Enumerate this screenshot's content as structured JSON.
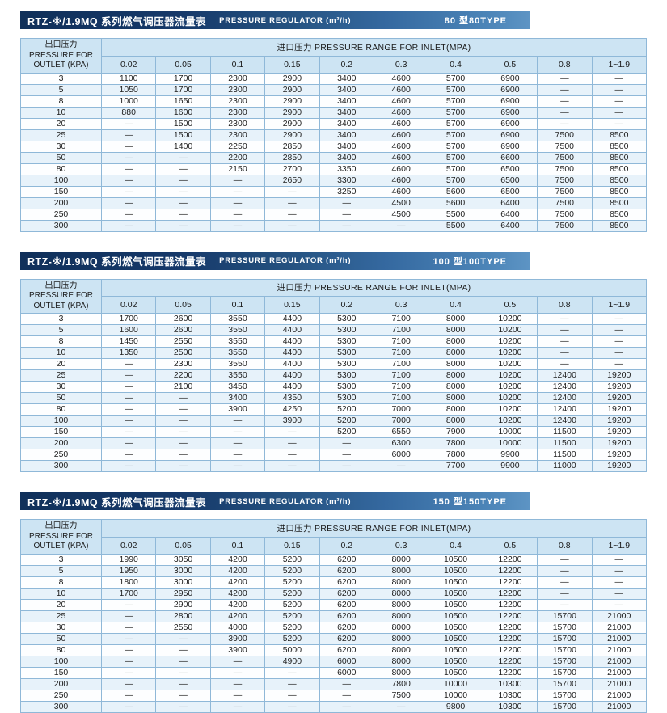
{
  "sections": [
    {
      "title_cn": "RTZ-※/1.9MQ 系列燃气调压器流量表",
      "title_en": "PRESSURE REGULATOR (m³/h)",
      "type_label": "80 型80TYPE",
      "table": {
        "outlet_header": "出口压力\nPRESSURE FOR\nOUTLET (KPA)",
        "inlet_header": "进口压力 PRESSURE RANGE FOR INLET(MPA)",
        "columns": [
          "0.02",
          "0.05",
          "0.1",
          "0.15",
          "0.2",
          "0.3",
          "0.4",
          "0.5",
          "0.8",
          "1~1.9"
        ],
        "rows": [
          {
            "outlet": "3",
            "values": [
              "1100",
              "1700",
              "2300",
              "2900",
              "3400",
              "4600",
              "5700",
              "6900",
              "—",
              "—"
            ]
          },
          {
            "outlet": "5",
            "values": [
              "1050",
              "1700",
              "2300",
              "2900",
              "3400",
              "4600",
              "5700",
              "6900",
              "—",
              "—"
            ]
          },
          {
            "outlet": "8",
            "values": [
              "1000",
              "1650",
              "2300",
              "2900",
              "3400",
              "4600",
              "5700",
              "6900",
              "—",
              "—"
            ]
          },
          {
            "outlet": "10",
            "values": [
              "880",
              "1600",
              "2300",
              "2900",
              "3400",
              "4600",
              "5700",
              "6900",
              "—",
              "—"
            ]
          },
          {
            "outlet": "20",
            "values": [
              "—",
              "1500",
              "2300",
              "2900",
              "3400",
              "4600",
              "5700",
              "6900",
              "—",
              "—"
            ]
          },
          {
            "outlet": "25",
            "values": [
              "—",
              "1500",
              "2300",
              "2900",
              "3400",
              "4600",
              "5700",
              "6900",
              "7500",
              "8500"
            ]
          },
          {
            "outlet": "30",
            "values": [
              "—",
              "1400",
              "2250",
              "2850",
              "3400",
              "4600",
              "5700",
              "6900",
              "7500",
              "8500"
            ]
          },
          {
            "outlet": "50",
            "values": [
              "—",
              "—",
              "2200",
              "2850",
              "3400",
              "4600",
              "5700",
              "6600",
              "7500",
              "8500"
            ]
          },
          {
            "outlet": "80",
            "values": [
              "—",
              "—",
              "2150",
              "2700",
              "3350",
              "4600",
              "5700",
              "6500",
              "7500",
              "8500"
            ]
          },
          {
            "outlet": "100",
            "values": [
              "—",
              "—",
              "—",
              "2650",
              "3300",
              "4600",
              "5700",
              "6500",
              "7500",
              "8500"
            ]
          },
          {
            "outlet": "150",
            "values": [
              "—",
              "—",
              "—",
              "—",
              "3250",
              "4600",
              "5600",
              "6500",
              "7500",
              "8500"
            ]
          },
          {
            "outlet": "200",
            "values": [
              "—",
              "—",
              "—",
              "—",
              "—",
              "4500",
              "5600",
              "6400",
              "7500",
              "8500"
            ]
          },
          {
            "outlet": "250",
            "values": [
              "—",
              "—",
              "—",
              "—",
              "—",
              "4500",
              "5500",
              "6400",
              "7500",
              "8500"
            ]
          },
          {
            "outlet": "300",
            "values": [
              "—",
              "—",
              "—",
              "—",
              "—",
              "—",
              "5500",
              "6400",
              "7500",
              "8500"
            ]
          }
        ]
      }
    },
    {
      "title_cn": "RTZ-※/1.9MQ 系列燃气调压器流量表",
      "title_en": "PRESSURE REGULATOR (m³/h)",
      "type_label": "100 型100TYPE",
      "table": {
        "outlet_header": "出口压力\nPRESSURE FOR\nOUTLET (KPA)",
        "inlet_header": "进口压力 PRESSURE RANGE FOR INLET(MPA)",
        "columns": [
          "0.02",
          "0.05",
          "0.1",
          "0.15",
          "0.2",
          "0.3",
          "0.4",
          "0.5",
          "0.8",
          "1~1.9"
        ],
        "rows": [
          {
            "outlet": "3",
            "values": [
              "1700",
              "2600",
              "3550",
              "4400",
              "5300",
              "7100",
              "8000",
              "10200",
              "—",
              "—"
            ]
          },
          {
            "outlet": "5",
            "values": [
              "1600",
              "2600",
              "3550",
              "4400",
              "5300",
              "7100",
              "8000",
              "10200",
              "—",
              "—"
            ]
          },
          {
            "outlet": "8",
            "values": [
              "1450",
              "2550",
              "3550",
              "4400",
              "5300",
              "7100",
              "8000",
              "10200",
              "—",
              "—"
            ]
          },
          {
            "outlet": "10",
            "values": [
              "1350",
              "2500",
              "3550",
              "4400",
              "5300",
              "7100",
              "8000",
              "10200",
              "—",
              "—"
            ]
          },
          {
            "outlet": "20",
            "values": [
              "—",
              "2300",
              "3550",
              "4400",
              "5300",
              "7100",
              "8000",
              "10200",
              "—",
              "—"
            ]
          },
          {
            "outlet": "25",
            "values": [
              "—",
              "2200",
              "3550",
              "4400",
              "5300",
              "7100",
              "8000",
              "10200",
              "12400",
              "19200"
            ]
          },
          {
            "outlet": "30",
            "values": [
              "—",
              "2100",
              "3450",
              "4400",
              "5300",
              "7100",
              "8000",
              "10200",
              "12400",
              "19200"
            ]
          },
          {
            "outlet": "50",
            "values": [
              "—",
              "—",
              "3400",
              "4350",
              "5300",
              "7100",
              "8000",
              "10200",
              "12400",
              "19200"
            ]
          },
          {
            "outlet": "80",
            "values": [
              "—",
              "—",
              "3900",
              "4250",
              "5200",
              "7000",
              "8000",
              "10200",
              "12400",
              "19200"
            ]
          },
          {
            "outlet": "100",
            "values": [
              "—",
              "—",
              "—",
              "3900",
              "5200",
              "7000",
              "8000",
              "10200",
              "12400",
              "19200"
            ]
          },
          {
            "outlet": "150",
            "values": [
              "—",
              "—",
              "—",
              "—",
              "5200",
              "6550",
              "7900",
              "10000",
              "11500",
              "19200"
            ]
          },
          {
            "outlet": "200",
            "values": [
              "—",
              "—",
              "—",
              "—",
              "—",
              "6300",
              "7800",
              "10000",
              "11500",
              "19200"
            ]
          },
          {
            "outlet": "250",
            "values": [
              "—",
              "—",
              "—",
              "—",
              "—",
              "6000",
              "7800",
              "9900",
              "11500",
              "19200"
            ]
          },
          {
            "outlet": "300",
            "values": [
              "—",
              "—",
              "—",
              "—",
              "—",
              "—",
              "7700",
              "9900",
              "11000",
              "19200"
            ]
          }
        ]
      }
    },
    {
      "title_cn": "RTZ-※/1.9MQ 系列燃气调压器流量表",
      "title_en": "PRESSURE REGULATOR (m³/h)",
      "type_label": "150 型150TYPE",
      "table": {
        "outlet_header": "出口压力\nPRESSURE FOR\nOUTLET (KPA)",
        "inlet_header": "进口压力 PRESSURE RANGE FOR INLET(MPA)",
        "columns": [
          "0.02",
          "0.05",
          "0.1",
          "0.15",
          "0.2",
          "0.3",
          "0.4",
          "0.5",
          "0.8",
          "1~1.9"
        ],
        "rows": [
          {
            "outlet": "3",
            "values": [
              "1990",
              "3050",
              "4200",
              "5200",
              "6200",
              "8000",
              "10500",
              "12200",
              "—",
              "—"
            ]
          },
          {
            "outlet": "5",
            "values": [
              "1950",
              "3000",
              "4200",
              "5200",
              "6200",
              "8000",
              "10500",
              "12200",
              "—",
              "—"
            ]
          },
          {
            "outlet": "8",
            "values": [
              "1800",
              "3000",
              "4200",
              "5200",
              "6200",
              "8000",
              "10500",
              "12200",
              "—",
              "—"
            ]
          },
          {
            "outlet": "10",
            "values": [
              "1700",
              "2950",
              "4200",
              "5200",
              "6200",
              "8000",
              "10500",
              "12200",
              "—",
              "—"
            ]
          },
          {
            "outlet": "20",
            "values": [
              "—",
              "2900",
              "4200",
              "5200",
              "6200",
              "8000",
              "10500",
              "12200",
              "—",
              "—"
            ]
          },
          {
            "outlet": "25",
            "values": [
              "—",
              "2800",
              "4200",
              "5200",
              "6200",
              "8000",
              "10500",
              "12200",
              "15700",
              "21000"
            ]
          },
          {
            "outlet": "30",
            "values": [
              "—",
              "2550",
              "4000",
              "5200",
              "6200",
              "8000",
              "10500",
              "12200",
              "15700",
              "21000"
            ]
          },
          {
            "outlet": "50",
            "values": [
              "—",
              "—",
              "3900",
              "5200",
              "6200",
              "8000",
              "10500",
              "12200",
              "15700",
              "21000"
            ]
          },
          {
            "outlet": "80",
            "values": [
              "—",
              "—",
              "3900",
              "5000",
              "6200",
              "8000",
              "10500",
              "12200",
              "15700",
              "21000"
            ]
          },
          {
            "outlet": "100",
            "values": [
              "—",
              "—",
              "—",
              "4900",
              "6000",
              "8000",
              "10500",
              "12200",
              "15700",
              "21000"
            ]
          },
          {
            "outlet": "150",
            "values": [
              "—",
              "—",
              "—",
              "—",
              "6000",
              "8000",
              "10500",
              "12200",
              "15700",
              "21000"
            ]
          },
          {
            "outlet": "200",
            "values": [
              "—",
              "—",
              "—",
              "—",
              "—",
              "7800",
              "10000",
              "10300",
              "15700",
              "21000"
            ]
          },
          {
            "outlet": "250",
            "values": [
              "—",
              "—",
              "—",
              "—",
              "—",
              "7500",
              "10000",
              "10300",
              "15700",
              "21000"
            ]
          },
          {
            "outlet": "300",
            "values": [
              "—",
              "—",
              "—",
              "—",
              "—",
              "—",
              "9800",
              "10300",
              "15700",
              "21000"
            ]
          }
        ]
      }
    }
  ]
}
